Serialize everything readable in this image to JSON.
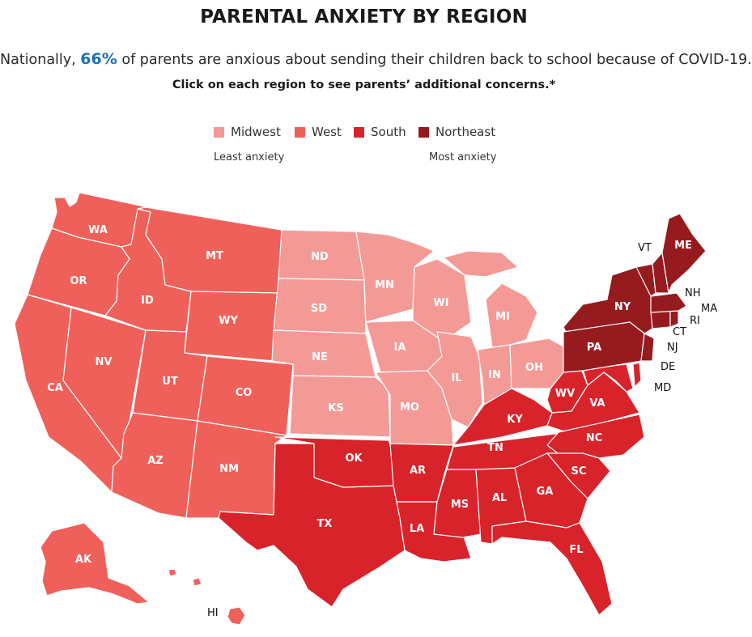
{
  "header": {
    "title": "PARENTAL ANXIETY BY REGION",
    "subtitle_pre": "Nationally,",
    "subtitle_highlight": "66%",
    "subtitle_post": "of parents are anxious about sending their children back to school because of COVID-19.",
    "instruction": "Click on each region to see parents’ additional concerns.*"
  },
  "legend": {
    "items": [
      {
        "label": "Midwest",
        "color": "#f49a96"
      },
      {
        "label": "West",
        "color": "#f0605a"
      },
      {
        "label": "South",
        "color": "#d8232a"
      },
      {
        "label": "Northeast",
        "color": "#951b1e"
      }
    ],
    "least_label": "Least anxiety",
    "most_label": "Most anxiety"
  },
  "map": {
    "regions": {
      "Midwest": {
        "color": "#f49a96",
        "states": [
          "ND",
          "SD",
          "NE",
          "KS",
          "MN",
          "IA",
          "MO",
          "WI",
          "IL",
          "MI",
          "IN",
          "OH"
        ]
      },
      "West": {
        "color": "#f0605a",
        "states": [
          "WA",
          "OR",
          "CA",
          "NV",
          "ID",
          "MT",
          "WY",
          "UT",
          "CO",
          "AZ",
          "NM",
          "AK",
          "HI"
        ]
      },
      "South": {
        "color": "#d8232a",
        "states": [
          "TX",
          "OK",
          "AR",
          "LA",
          "MS",
          "AL",
          "TN",
          "KY",
          "WV",
          "VA",
          "NC",
          "SC",
          "GA",
          "FL",
          "MD",
          "DE"
        ]
      },
      "Northeast": {
        "color": "#951b1e",
        "states": [
          "NY",
          "PA",
          "NJ",
          "CT",
          "RI",
          "MA",
          "VT",
          "NH",
          "ME"
        ]
      }
    },
    "state_labels": [
      "WA",
      "OR",
      "CA",
      "NV",
      "ID",
      "MT",
      "WY",
      "UT",
      "CO",
      "AZ",
      "NM",
      "AK",
      "ND",
      "SD",
      "NE",
      "KS",
      "MN",
      "IA",
      "MO",
      "WI",
      "IL",
      "MI",
      "IN",
      "OH",
      "TX",
      "OK",
      "AR",
      "LA",
      "MS",
      "AL",
      "TN",
      "KY",
      "WV",
      "VA",
      "NC",
      "SC",
      "GA",
      "FL",
      "NY",
      "PA",
      "ME"
    ],
    "outside_labels": [
      "VT",
      "NH",
      "MA",
      "RI",
      "CT",
      "NJ",
      "DE",
      "MD",
      "HI"
    ]
  }
}
